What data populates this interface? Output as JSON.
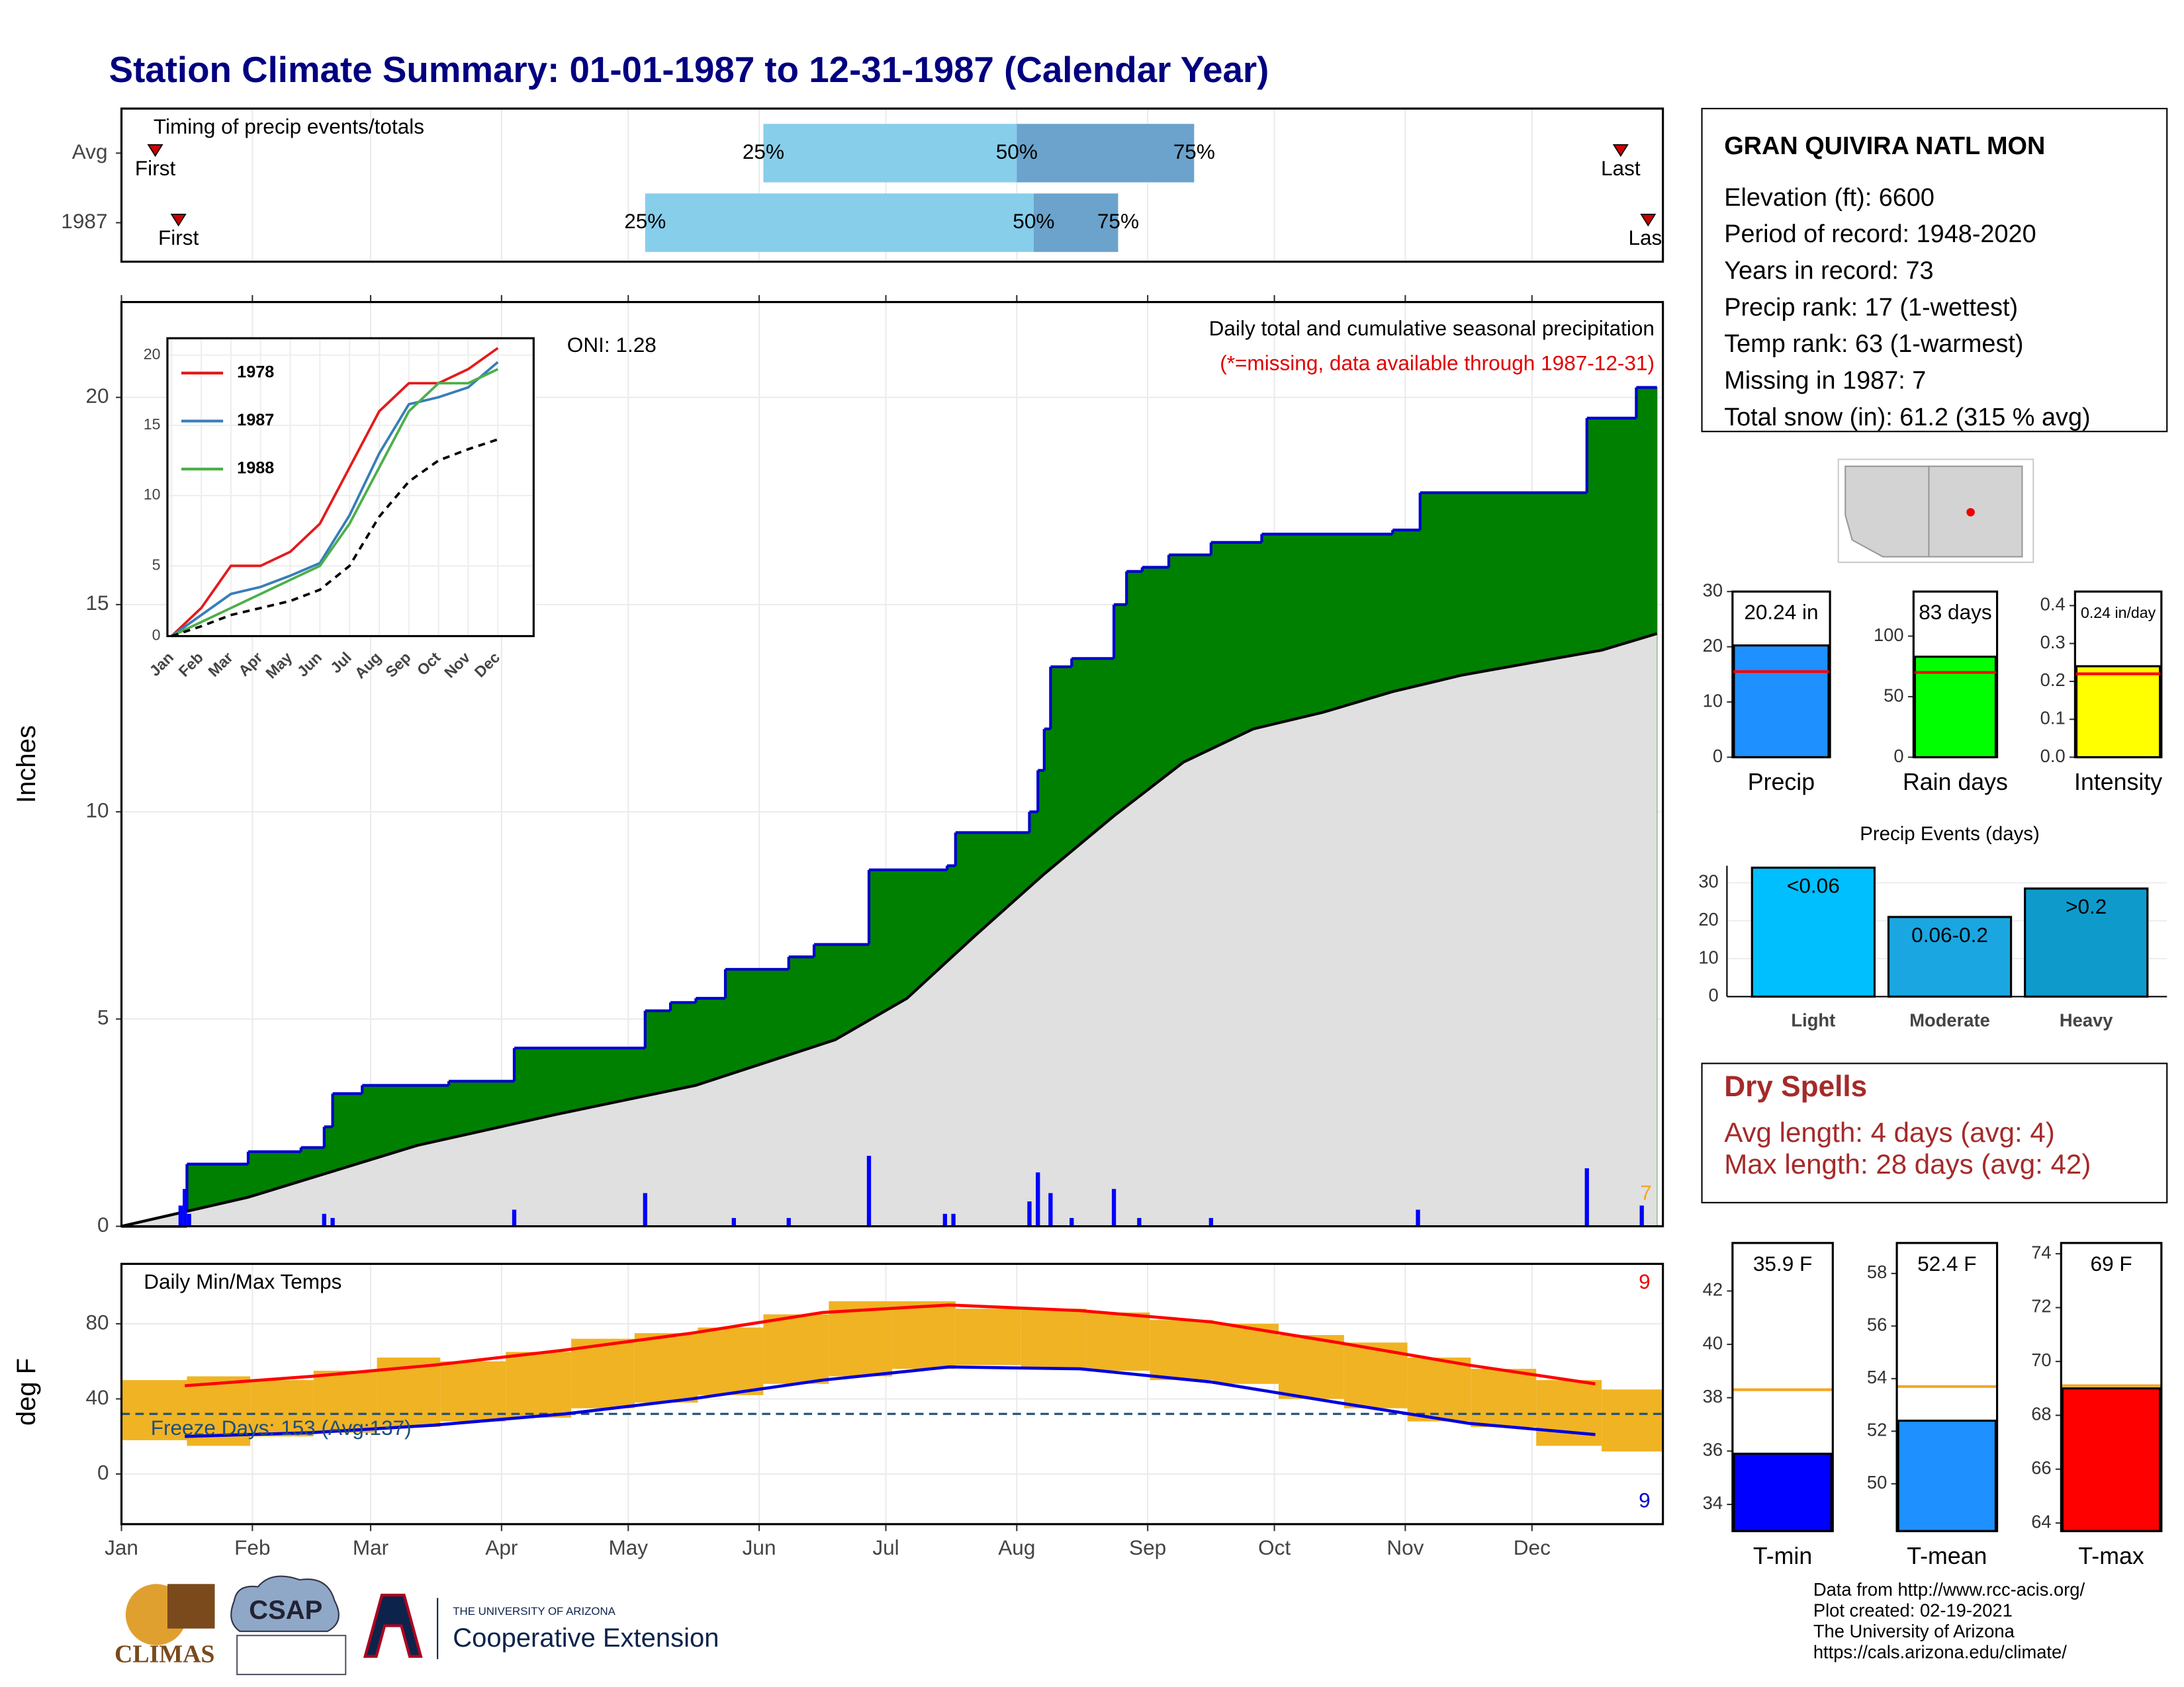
{
  "title": "Station Climate Summary: 01-01-1987 to 12-31-1987 (Calendar Year)",
  "station_info": {
    "name": "GRAN QUIVIRA NATL MON",
    "lines": [
      "Elevation (ft): 6600",
      "Period of record: 1948-2020",
      "Years in record: 73",
      "Precip rank: 17 (1-wettest)",
      "Temp rank: 63 (1-warmest)",
      "Missing in 1987: 7",
      "Total snow (in): 61.2 (315 % avg)"
    ]
  },
  "dry_spells": {
    "title": "Dry Spells",
    "lines": [
      "Avg length: 4 days (avg: 4)",
      "Max length: 28 days (avg: 42)"
    ]
  },
  "footer": [
    "Data from http://www.rcc-acis.org/",
    "Plot created: 02-19-2021",
    "The University of Arizona",
    "https://cals.arizona.edu/climate/"
  ],
  "logos": [
    "CLIMAS",
    "CSAP",
    "THE UNIVERSITY OF ARIZONA",
    "Cooperative Extension"
  ],
  "chart_data": [
    {
      "type": "timing",
      "title": "Timing of precip events/totals",
      "categories": [
        "Avg",
        "1987"
      ],
      "xlim": [
        0,
        365
      ],
      "percentile_labels": [
        "25%",
        "50%",
        "75%"
      ],
      "marker_labels": [
        "First",
        "Last"
      ],
      "rows": [
        {
          "first": 8,
          "p25": 152,
          "p50": 212,
          "p75": 254,
          "last": 355
        },
        {
          "first": 13.5,
          "p25": 124,
          "p50": 216,
          "p75": 236,
          "last": 361.5
        }
      ],
      "colors": [
        "#87ceeb",
        "#6ba3cc",
        "#cc0000"
      ]
    },
    {
      "type": "cumulative_precip",
      "ylabel": "Inches",
      "annotations": [
        "Daily total and cumulative seasonal precipitation",
        "(*=missing, data available through 1987-12-31)"
      ],
      "oni": "ONI: 1.28",
      "missing_count": 7,
      "xlim": [
        0,
        365
      ],
      "ylim": [
        0,
        22.3
      ],
      "yticks": [
        0,
        5,
        10,
        15,
        20
      ],
      "series": [
        {
          "color": "#008000",
          "line_color": "#0000cc",
          "x": [
            0,
            15.5,
            30,
            42.5,
            48,
            50,
            57,
            77.5,
            93,
            124,
            130,
            136,
            143,
            158,
            164,
            177,
            195.5,
            197.5,
            215,
            217,
            218.5,
            220,
            225,
            235,
            238,
            241.7,
            248,
            258,
            270,
            301,
            307.5,
            347,
            358.7,
            363.6
          ],
          "values": [
            0,
            1.5,
            1.8,
            1.9,
            2.4,
            3.2,
            3.4,
            3.5,
            4.3,
            5.2,
            5.4,
            5.5,
            6.2,
            6.5,
            6.8,
            8.6,
            8.7,
            9.5,
            10.0,
            11.0,
            12.0,
            13.5,
            13.7,
            15.0,
            15.8,
            15.9,
            16.2,
            16.5,
            16.7,
            16.8,
            17.7,
            19.5,
            20.24,
            20.24
          ]
        },
        {
          "color": "#e0e0e0",
          "line_color": "#000000",
          "x": [
            0,
            30,
            70,
            103,
            136,
            169,
            186,
            202,
            218.5,
            235,
            251.5,
            268,
            284.5,
            301,
            317.5,
            334,
            350.5,
            363.6
          ],
          "values": [
            0,
            0.7,
            1.95,
            2.7,
            3.4,
            4.5,
            5.5,
            7.0,
            8.5,
            9.9,
            11.2,
            12.0,
            12.4,
            12.9,
            13.3,
            13.6,
            13.9,
            14.3
          ]
        }
      ],
      "daily": {
        "color": "#0000ff",
        "x": [
          14,
          15,
          16,
          48,
          50,
          93,
          124,
          145,
          158,
          177,
          195,
          197,
          215,
          217,
          220,
          225,
          235,
          241,
          258,
          307,
          347,
          360
        ],
        "values": [
          0.5,
          0.9,
          0.3,
          0.3,
          0.2,
          0.4,
          0.8,
          0.2,
          0.2,
          1.7,
          0.3,
          0.3,
          0.6,
          1.3,
          0.8,
          0.2,
          0.9,
          0.2,
          0.2,
          0.4,
          1.4,
          0.5
        ]
      }
    },
    {
      "type": "line",
      "categories": [
        "Jan",
        "Feb",
        "Mar",
        "Apr",
        "May",
        "Jun",
        "Jul",
        "Aug",
        "Sep",
        "Oct",
        "Nov",
        "Dec"
      ],
      "ylim": [
        0,
        21.2
      ],
      "yticks": [
        0,
        5,
        10,
        15,
        20
      ],
      "series": [
        {
          "name": "1978",
          "color": "#e41a1c",
          "values": [
            0,
            2,
            5,
            5,
            6,
            8,
            12,
            16,
            18,
            18,
            19,
            20.5
          ]
        },
        {
          "name": "1987",
          "color": "#377eb8",
          "values": [
            0,
            1.5,
            3,
            3.5,
            4.3,
            5.2,
            8.6,
            13,
            16.5,
            17,
            17.7,
            19.5
          ]
        },
        {
          "name": "1988",
          "color": "#4daf4a",
          "values": [
            0,
            1,
            2,
            3,
            4,
            5,
            8,
            12,
            16,
            18,
            18,
            19
          ]
        },
        {
          "color": "#000000",
          "dashed": true,
          "values": [
            0,
            0.7,
            1.5,
            2,
            2.5,
            3.3,
            5,
            8.5,
            11,
            12.5,
            13.3,
            14
          ]
        }
      ]
    },
    {
      "type": "temp_range",
      "title": "Daily Min/Max Temps",
      "ylabel": "deg F",
      "annotation": "Freeze Days: 153 (Avg:137)",
      "record_high_count": 9,
      "record_low_count": 9,
      "xlim": [
        0,
        365
      ],
      "ylim": [
        -26.7,
        111.9
      ],
      "yticks": [
        0,
        40,
        80
      ],
      "freeze": 32,
      "xticks": [
        {
          "value": 0,
          "label": "Jan"
        },
        {
          "value": 31,
          "label": "Feb"
        },
        {
          "value": 59,
          "label": "Mar"
        },
        {
          "value": 90,
          "label": "Apr"
        },
        {
          "value": 120,
          "label": "May"
        },
        {
          "value": 151,
          "label": "Jun"
        },
        {
          "value": 181,
          "label": "Jul"
        },
        {
          "value": 212,
          "label": "Aug"
        },
        {
          "value": 243,
          "label": "Sep"
        },
        {
          "value": 273,
          "label": "Oct"
        },
        {
          "value": 304,
          "label": "Nov"
        },
        {
          "value": 334,
          "label": "Dec"
        }
      ],
      "observed": {
        "color": "#f0b323",
        "x": [
          8,
          23,
          38,
          53,
          68,
          83,
          99,
          114,
          129,
          144,
          160,
          175,
          190,
          205,
          221,
          236,
          251,
          266,
          282,
          297,
          312,
          327,
          343,
          358
        ],
        "max": [
          50,
          52,
          50,
          55,
          62,
          60,
          65,
          72,
          75,
          78,
          85,
          92,
          92,
          88,
          88,
          86,
          82,
          80,
          74,
          70,
          62,
          56,
          50,
          45
        ],
        "min": [
          18,
          15,
          20,
          22,
          25,
          28,
          30,
          35,
          38,
          42,
          48,
          52,
          56,
          58,
          56,
          55,
          50,
          48,
          40,
          35,
          28,
          25,
          15,
          12
        ]
      },
      "series": [
        {
          "color": "#ff0000",
          "x": [
            15,
            45,
            74,
            105,
            135,
            166,
            196,
            227,
            258,
            288,
            319,
            349
          ],
          "values": [
            47,
            52,
            58,
            66,
            75,
            86,
            90,
            87,
            81,
            70,
            58,
            48
          ]
        },
        {
          "color": "#0000dd",
          "x": [
            15,
            45,
            74,
            105,
            135,
            166,
            196,
            227,
            258,
            288,
            319,
            349
          ],
          "values": [
            20,
            22,
            26,
            32,
            40,
            50,
            57,
            56,
            49,
            38,
            27,
            21
          ]
        }
      ]
    },
    {
      "type": "summary_bar",
      "categories": [
        "Precip"
      ],
      "values": [
        20.24
      ],
      "value_labels": [
        "20.24 in"
      ],
      "average": 15.5,
      "color": "#1e90ff",
      "average_color": "#ff0000",
      "ylim": [
        0,
        30
      ],
      "yticks": [
        0,
        10,
        20,
        30
      ]
    },
    {
      "type": "summary_bar",
      "categories": [
        "Rain days"
      ],
      "values": [
        83
      ],
      "value_labels": [
        "83 days"
      ],
      "average": 70,
      "color": "#00ff00",
      "average_color": "#ff0000",
      "ylim": [
        0,
        136.8
      ],
      "yticks": [
        0,
        50,
        100
      ]
    },
    {
      "type": "summary_bar",
      "categories": [
        "Intensity"
      ],
      "values": [
        0.24
      ],
      "value_labels": [
        "0.24 in/day"
      ],
      "average": 0.22,
      "color": "#ffff00",
      "average_color": "#ff0000",
      "ylim": [
        0,
        0.437
      ],
      "yticks": [
        {
          "value": 0,
          "label": "0.0"
        },
        {
          "value": 0.1,
          "label": "0.1"
        },
        {
          "value": 0.2,
          "label": "0.2"
        },
        {
          "value": 0.3,
          "label": "0.3"
        },
        {
          "value": 0.4,
          "label": "0.4"
        }
      ]
    },
    {
      "type": "bar",
      "title": "Precip Events (days)",
      "categories": [
        "Light",
        "Moderate",
        "Heavy"
      ],
      "thresholds": [
        "<0.06",
        "0.06-0.2",
        ">0.2"
      ],
      "values": [
        34,
        21,
        28.5
      ],
      "colors": [
        "#00bfff",
        "#1aa6e0",
        "#0e9bcc"
      ],
      "ylim": [
        0,
        34.5
      ],
      "yticks": [
        0,
        10,
        20,
        30
      ]
    },
    {
      "type": "summary_bar",
      "categories": [
        "T-min"
      ],
      "values": [
        35.9
      ],
      "value_labels": [
        "35.9 F"
      ],
      "average": 38.3,
      "color": "#0000ff",
      "average_color": "#f5a623",
      "ylim": [
        33,
        43.8
      ],
      "yticks": [
        34,
        36,
        38,
        40,
        42
      ]
    },
    {
      "type": "summary_bar",
      "categories": [
        "T-mean"
      ],
      "values": [
        52.4
      ],
      "value_labels": [
        "52.4 F"
      ],
      "average": 53.7,
      "color": "#1e90ff",
      "average_color": "#f5a623",
      "ylim": [
        48.2,
        59.16
      ],
      "yticks": [
        50,
        52,
        54,
        56,
        58
      ]
    },
    {
      "type": "summary_bar",
      "categories": [
        "T-max"
      ],
      "values": [
        69
      ],
      "value_labels": [
        "69 F"
      ],
      "average": 69.1,
      "color": "#ff0000",
      "average_color": "#f5a623",
      "ylim": [
        63.7,
        74.4
      ],
      "yticks": [
        64,
        66,
        68,
        70,
        72,
        74
      ]
    }
  ]
}
